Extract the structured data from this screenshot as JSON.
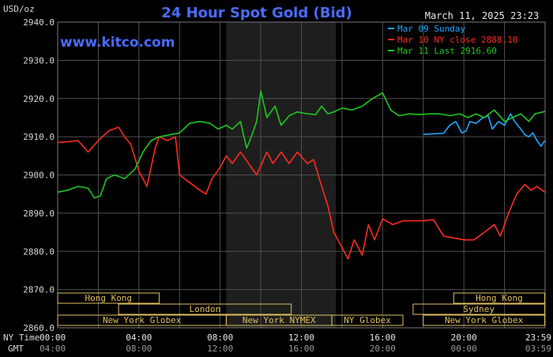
{
  "chart_data": {
    "type": "line",
    "title": "24 Hour Spot Gold (Bid)",
    "timestamp": "March 11, 2025 23:23",
    "watermark": "www.kitco.com",
    "ylabel": "USD/oz",
    "ylim": [
      2860,
      2940
    ],
    "yticks": [
      "2940.0",
      "2930.0",
      "2920.0",
      "2910.0",
      "2900.0",
      "2890.0",
      "2880.0",
      "2870.0",
      "2860.0"
    ],
    "x_row_labels": [
      "NY Time",
      "GMT"
    ],
    "xticks_ny": [
      "00:00",
      "04:00",
      "08:00",
      "12:00",
      "16:00",
      "20:00",
      "23:59"
    ],
    "xticks_gmt": [
      "04:00",
      "08:00",
      "12:00",
      "16:00",
      "20:00",
      "00:00",
      "03:59"
    ],
    "grid": true,
    "legend_position": "top-right",
    "colors": {
      "background": "#000000",
      "grid": "#505050",
      "title": "#4a6cff",
      "axis_text": "#d8d8d8",
      "session_fill": "#1e1e1e",
      "market_box": "#e0c060"
    },
    "series": [
      {
        "name": "Mar 09 Sunday",
        "color": "#1fa8ff",
        "points": [
          [
            18.0,
            2910.6
          ],
          [
            18.6,
            2910.8
          ],
          [
            19.0,
            2910.9
          ],
          [
            19.3,
            2913
          ],
          [
            19.6,
            2914
          ],
          [
            19.9,
            2911
          ],
          [
            20.1,
            2911.5
          ],
          [
            20.3,
            2914
          ],
          [
            20.6,
            2913.5
          ],
          [
            20.9,
            2914.8
          ],
          [
            21.2,
            2915.5
          ],
          [
            21.4,
            2912
          ],
          [
            21.7,
            2914
          ],
          [
            22.0,
            2913
          ],
          [
            22.3,
            2916
          ],
          [
            22.5,
            2914
          ],
          [
            22.8,
            2912
          ],
          [
            23.0,
            2910.5
          ],
          [
            23.2,
            2910
          ],
          [
            23.4,
            2911
          ],
          [
            23.6,
            2909
          ],
          [
            23.8,
            2907.5
          ],
          [
            23.98,
            2909
          ]
        ]
      },
      {
        "name": "Mar 10 NY close 2888.10",
        "color": "#ff2b1e",
        "points": [
          [
            0,
            2908.5
          ],
          [
            0.5,
            2908.7
          ],
          [
            1.0,
            2909
          ],
          [
            1.5,
            2906
          ],
          [
            2.0,
            2909
          ],
          [
            2.5,
            2911.5
          ],
          [
            3.0,
            2912.5
          ],
          [
            3.3,
            2910
          ],
          [
            3.6,
            2908
          ],
          [
            4.0,
            2901
          ],
          [
            4.4,
            2897
          ],
          [
            4.8,
            2907
          ],
          [
            5.0,
            2910
          ],
          [
            5.4,
            2909
          ],
          [
            5.8,
            2910
          ],
          [
            6.0,
            2900
          ],
          [
            6.5,
            2898
          ],
          [
            7.0,
            2896
          ],
          [
            7.3,
            2895
          ],
          [
            7.6,
            2899
          ],
          [
            8.0,
            2902
          ],
          [
            8.3,
            2905
          ],
          [
            8.6,
            2903
          ],
          [
            9.0,
            2906
          ],
          [
            9.4,
            2903
          ],
          [
            9.8,
            2900
          ],
          [
            10.3,
            2906
          ],
          [
            10.6,
            2903
          ],
          [
            11.0,
            2906
          ],
          [
            11.4,
            2903
          ],
          [
            11.8,
            2906
          ],
          [
            12.3,
            2903
          ],
          [
            12.6,
            2904
          ],
          [
            13.0,
            2897
          ],
          [
            13.3,
            2892
          ],
          [
            13.6,
            2885
          ],
          [
            14.0,
            2881
          ],
          [
            14.3,
            2878
          ],
          [
            14.6,
            2883
          ],
          [
            15.0,
            2879
          ],
          [
            15.3,
            2887
          ],
          [
            15.6,
            2883
          ],
          [
            16.0,
            2888.5
          ],
          [
            16.5,
            2887
          ],
          [
            17.0,
            2888
          ],
          [
            17.5,
            2888
          ],
          [
            18.0,
            2888
          ],
          [
            18.5,
            2888.3
          ],
          [
            19.0,
            2884
          ],
          [
            19.5,
            2883.5
          ],
          [
            20.0,
            2883
          ],
          [
            20.5,
            2883
          ],
          [
            21.0,
            2885
          ],
          [
            21.5,
            2887
          ],
          [
            21.8,
            2884
          ],
          [
            22.2,
            2890
          ],
          [
            22.6,
            2895
          ],
          [
            23.0,
            2897.5
          ],
          [
            23.3,
            2896
          ],
          [
            23.6,
            2897
          ],
          [
            23.98,
            2895.5
          ]
        ]
      },
      {
        "name": "Mar 11 Last 2916.60",
        "color": "#1ec81e",
        "points": [
          [
            0,
            2895.5
          ],
          [
            0.5,
            2896
          ],
          [
            1.0,
            2897
          ],
          [
            1.5,
            2896.5
          ],
          [
            1.8,
            2894
          ],
          [
            2.1,
            2894.5
          ],
          [
            2.4,
            2899
          ],
          [
            2.8,
            2900
          ],
          [
            3.3,
            2899
          ],
          [
            3.8,
            2901.5
          ],
          [
            4.2,
            2906
          ],
          [
            4.6,
            2909
          ],
          [
            5.0,
            2910
          ],
          [
            5.5,
            2910.5
          ],
          [
            6.0,
            2911
          ],
          [
            6.5,
            2913.5
          ],
          [
            7.0,
            2914
          ],
          [
            7.5,
            2913.5
          ],
          [
            7.9,
            2912
          ],
          [
            8.3,
            2913
          ],
          [
            8.6,
            2912
          ],
          [
            9.0,
            2914
          ],
          [
            9.3,
            2907
          ],
          [
            9.5,
            2909.5
          ],
          [
            9.8,
            2914
          ],
          [
            10.0,
            2922
          ],
          [
            10.3,
            2915
          ],
          [
            10.7,
            2918
          ],
          [
            11.0,
            2913
          ],
          [
            11.4,
            2915.5
          ],
          [
            11.8,
            2916.5
          ],
          [
            12.3,
            2916
          ],
          [
            12.7,
            2915.8
          ],
          [
            13.0,
            2918
          ],
          [
            13.3,
            2916
          ],
          [
            13.6,
            2916.5
          ],
          [
            14.0,
            2917.5
          ],
          [
            14.5,
            2917
          ],
          [
            15.0,
            2918
          ],
          [
            15.5,
            2920
          ],
          [
            16.0,
            2921.5
          ],
          [
            16.4,
            2917
          ],
          [
            16.8,
            2915.5
          ],
          [
            17.3,
            2916
          ],
          [
            17.8,
            2915.8
          ],
          [
            18.3,
            2916
          ],
          [
            18.8,
            2916
          ],
          [
            19.3,
            2915.5
          ],
          [
            19.8,
            2916
          ],
          [
            20.2,
            2915
          ],
          [
            20.6,
            2916
          ],
          [
            21.0,
            2915
          ],
          [
            21.5,
            2917
          ],
          [
            22.0,
            2914
          ],
          [
            22.4,
            2915
          ],
          [
            22.8,
            2916
          ],
          [
            23.2,
            2914
          ],
          [
            23.5,
            2916
          ],
          [
            23.98,
            2916.6
          ]
        ]
      }
    ],
    "shaded_regions_ny_hours": [
      [
        8.3,
        13.7
      ]
    ],
    "market_rows": [
      {
        "label": "Hong Kong",
        "start": 0.0,
        "end": 5.0,
        "row": 0
      },
      {
        "label": "Hong Kong",
        "start": 19.5,
        "end": 23.98,
        "row": 0
      },
      {
        "label": "London",
        "start": 3.0,
        "end": 11.5,
        "row": 1
      },
      {
        "label": "Sydney",
        "start": 17.5,
        "end": 23.98,
        "row": 1
      },
      {
        "label": "New York Globex",
        "start": 0.0,
        "end": 8.3,
        "row": 2
      },
      {
        "label": "New York NYMEX",
        "start": 8.3,
        "end": 13.5,
        "row": 2
      },
      {
        "label": "NY Globex",
        "start": 13.5,
        "end": 17.0,
        "row": 2
      },
      {
        "label": "New York Globex",
        "start": 18.0,
        "end": 23.98,
        "row": 2
      }
    ]
  }
}
